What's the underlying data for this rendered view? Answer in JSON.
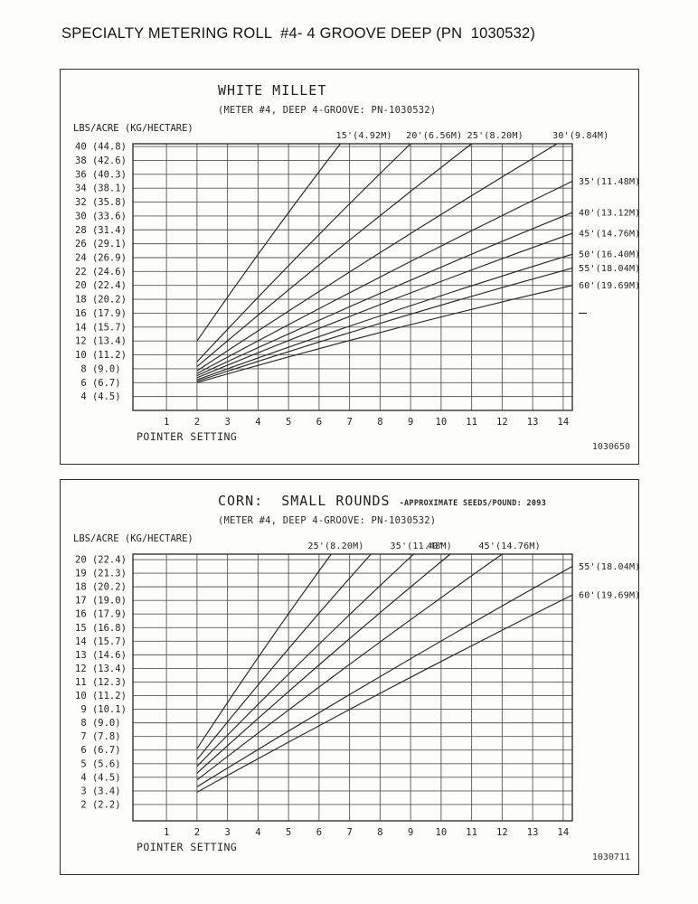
{
  "page_title": "SPECIALTY METERING ROLL  #4- 4 GROOVE DEEP (PN  1030532)",
  "chart_data": [
    {
      "type": "line",
      "title": "WHITE MILLET",
      "title_note": "",
      "subtitle": "(METER #4, DEEP 4-GROOVE: PN-1030532)",
      "ylabel": "LBS/ACRE (KG/HECTARE)",
      "xlabel": "POINTER SETTING",
      "form_number": "1030650",
      "grid": true,
      "legend_position": "line-end-labels",
      "x_ticks": [
        1,
        2,
        3,
        4,
        5,
        6,
        7,
        8,
        9,
        10,
        11,
        12,
        13,
        14
      ],
      "y_ticks": [
        "40 (44.8)",
        "38 (42.6)",
        "36 (40.3)",
        "34 (38.1)",
        "32 (35.8)",
        "30 (33.6)",
        "28 (31.4)",
        "26 (29.1)",
        "24 (26.9)",
        "22 (24.6)",
        "20 (22.4)",
        "18 (20.2)",
        "16 (17.9)",
        "14 (15.7)",
        "12 (13.4)",
        "10 (11.2)",
        "8 (9.0)",
        "6 (6.7)",
        "4 (4.5)"
      ],
      "xlim": [
        -0.1,
        14.3
      ],
      "ylim": [
        2,
        40.4
      ],
      "top_label_dx": -5,
      "series": [
        {
          "name": "15'(4.92M)",
          "label_side": "top",
          "points": [
            [
              2,
              12.0
            ],
            [
              6.7,
              40.4
            ]
          ]
        },
        {
          "name": "20'(6.56M)",
          "label_side": "top",
          "points": [
            [
              2,
              9.0
            ],
            [
              9.0,
              40.4
            ]
          ]
        },
        {
          "name": "25'(8.20M)",
          "label_side": "top",
          "points": [
            [
              2,
              8.3
            ],
            [
              11.0,
              40.4
            ]
          ]
        },
        {
          "name": "30'(9.84M)",
          "label_side": "top",
          "points": [
            [
              2,
              7.7
            ],
            [
              13.8,
              40.4
            ]
          ]
        },
        {
          "name": "35'(11.48M)",
          "label_side": "right",
          "points": [
            [
              2,
              7.3
            ],
            [
              14.3,
              35.0
            ]
          ]
        },
        {
          "name": "40'(13.12M)",
          "label_side": "right",
          "points": [
            [
              2,
              7.0
            ],
            [
              14.3,
              30.5
            ]
          ]
        },
        {
          "name": "45'(14.76M)",
          "label_side": "right",
          "points": [
            [
              2,
              6.7
            ],
            [
              14.3,
              27.5
            ]
          ]
        },
        {
          "name": "50'(16.40M)",
          "label_side": "right",
          "points": [
            [
              2,
              6.4
            ],
            [
              14.3,
              24.5
            ]
          ]
        },
        {
          "name": "55'(18.04M)",
          "label_side": "right",
          "points": [
            [
              2,
              6.2
            ],
            [
              14.3,
              22.5
            ]
          ]
        },
        {
          "name": "60'(19.69M)",
          "label_side": "right",
          "points": [
            [
              2,
              6.0
            ],
            [
              14.3,
              20.0
            ]
          ]
        }
      ],
      "stray_mark_y": 16
    },
    {
      "type": "line",
      "title": "CORN:  SMALL ROUNDS",
      "title_note": "-APPROXIMATE SEEDS/POUND: 2093",
      "subtitle": "(METER #4, DEEP 4-GROOVE: PN-1030532)",
      "ylabel": "LBS/ACRE (KG/HECTARE)",
      "xlabel": "POINTER SETTING",
      "form_number": "1030711",
      "grid": true,
      "legend_position": "line-end-labels",
      "x_ticks": [
        1,
        2,
        3,
        4,
        5,
        6,
        7,
        8,
        9,
        10,
        11,
        12,
        13,
        14
      ],
      "y_ticks": [
        "20 (22.4)",
        "19 (21.3)",
        "18 (20.2)",
        "17 (19.0)",
        "16 (17.9)",
        "15 (16.8)",
        "14 (15.7)",
        "13 (14.6)",
        "12 (13.4)",
        "11 (12.3)",
        "10 (11.2)",
        "9 (10.1)",
        "8 (9.0)",
        "7 (7.8)",
        "6 (6.7)",
        "5 (5.6)",
        "4 (4.5)",
        "3 (3.4)",
        "2 (2.2)"
      ],
      "xlim": [
        -0.1,
        14.3
      ],
      "ylim": [
        0.8,
        20.4
      ],
      "top_label_dx": -26,
      "series": [
        {
          "name": "25'(8.20M)",
          "label_side": "top",
          "points": [
            [
              2,
              6.1
            ],
            [
              6.4,
              20.4
            ]
          ]
        },
        {
          "name": "",
          "label_side": "none",
          "points": [
            [
              2,
              5.3
            ],
            [
              7.7,
              20.4
            ]
          ]
        },
        {
          "name": "35'(11.48M)",
          "label_side": "top",
          "points": [
            [
              2,
              4.8
            ],
            [
              9.1,
              20.4
            ]
          ]
        },
        {
          "name": "40'",
          "label_side": "top",
          "points": [
            [
              2,
              4.3
            ],
            [
              10.3,
              20.4
            ]
          ]
        },
        {
          "name": "45'(14.76M)",
          "label_side": "top",
          "points": [
            [
              2,
              3.8
            ],
            [
              12.0,
              20.4
            ]
          ]
        },
        {
          "name": "55'(18.04M)",
          "label_side": "right",
          "points": [
            [
              2,
              3.3
            ],
            [
              14.3,
              19.5
            ]
          ]
        },
        {
          "name": "60'(19.69M)",
          "label_side": "right",
          "points": [
            [
              2,
              2.9
            ],
            [
              14.3,
              17.4
            ]
          ]
        }
      ]
    }
  ]
}
